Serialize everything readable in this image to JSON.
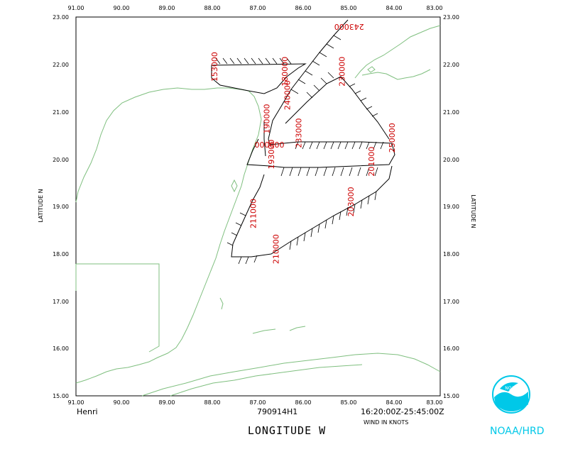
{
  "map": {
    "lon_range": [
      -91,
      -83
    ],
    "lat_range": [
      15,
      23
    ],
    "lon_ticks": [
      "91.00",
      "90.00",
      "89.00",
      "88.00",
      "87.00",
      "86.00",
      "85.00",
      "84.00",
      "83.00"
    ],
    "lat_ticks": [
      "15.00",
      "16.00",
      "17.00",
      "18.00",
      "19.00",
      "20.00",
      "21.00",
      "22.00",
      "23.00"
    ],
    "x_axis_title": "LONGITUDE  W",
    "y_axis_title": "LATITUDE  N",
    "storm_name": "Henri",
    "flight_id": "790914H1",
    "time_window": "16:20:00Z-25:45:00Z",
    "units_label": "WIND IN KNOTS",
    "coast_color": "#7fbf7f",
    "track_color": "#000000",
    "time_label_color": "#cc0000",
    "time_labels": [
      {
        "text": "243000",
        "lon": -85.0,
        "lat": 22.85,
        "angle": 180
      },
      {
        "text": "153000",
        "lon": -87.9,
        "lat": 21.95,
        "angle": -90
      },
      {
        "text": "180000",
        "lon": -86.35,
        "lat": 21.85,
        "angle": -90
      },
      {
        "text": "240000",
        "lon": -86.3,
        "lat": 21.35,
        "angle": -90
      },
      {
        "text": "230000",
        "lon": -85.1,
        "lat": 21.85,
        "angle": -90
      },
      {
        "text": "190000",
        "lon": -86.75,
        "lat": 20.85,
        "angle": -90
      },
      {
        "text": "233000",
        "lon": -86.05,
        "lat": 20.55,
        "angle": -90
      },
      {
        "text": "250000",
        "lon": -84.0,
        "lat": 20.45,
        "angle": -90
      },
      {
        "text": "000000",
        "lon": -86.75,
        "lat": 20.36,
        "angle": 180
      },
      {
        "text": "193000",
        "lon": -86.65,
        "lat": 20.1,
        "angle": -90
      },
      {
        "text": "201000",
        "lon": -84.45,
        "lat": 19.95,
        "angle": -90
      },
      {
        "text": "203000",
        "lon": -84.9,
        "lat": 19.1,
        "angle": -90
      },
      {
        "text": "211000",
        "lon": -87.05,
        "lat": 18.85,
        "angle": -90
      },
      {
        "text": "210000",
        "lon": -86.55,
        "lat": 18.1,
        "angle": -90
      }
    ]
  }
}
